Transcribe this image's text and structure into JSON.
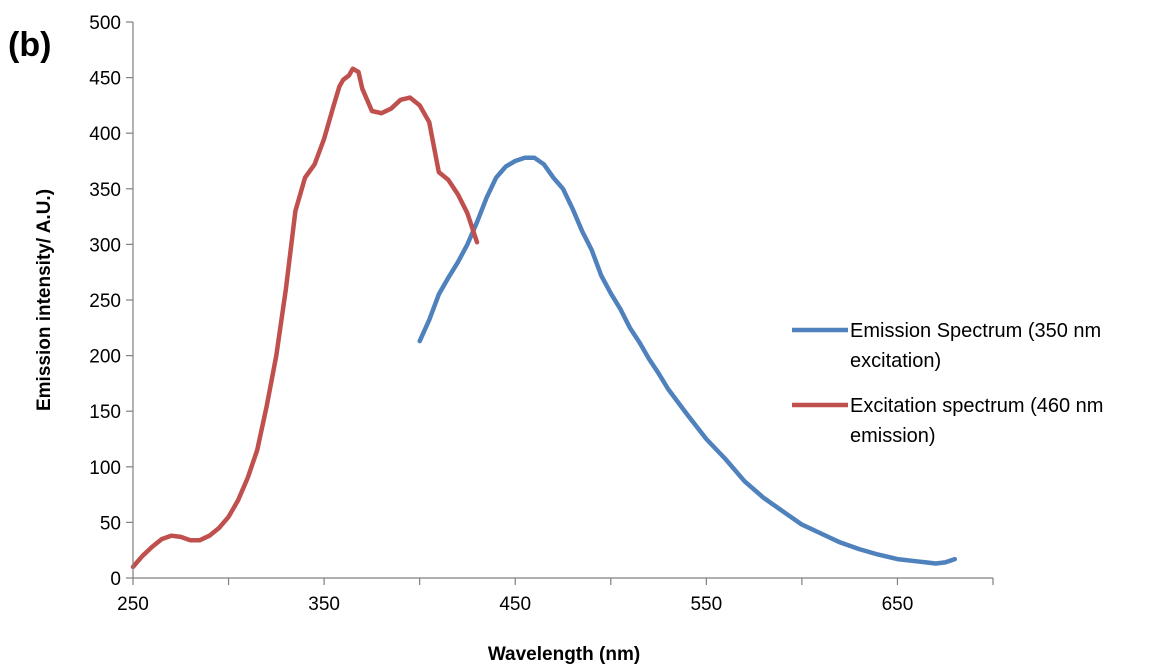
{
  "panel_label": "(b)",
  "chart_data": {
    "type": "line",
    "xlabel": "Wavelength (nm)",
    "ylabel": "Emission intensity/ A.U.)",
    "xlim": [
      250,
      700
    ],
    "ylim": [
      0,
      500
    ],
    "xticks": [
      250,
      350,
      450,
      550,
      650
    ],
    "yticks": [
      0,
      50,
      100,
      150,
      200,
      250,
      300,
      350,
      400,
      450,
      500
    ],
    "grid": false,
    "legend_position": "right",
    "series": [
      {
        "name": "Emission Spectrum (350 nm excitation)",
        "legend_lines": [
          "Emission Spectrum (350 nm",
          "excitation)"
        ],
        "color": "#4F81BD",
        "x": [
          400,
          405,
          410,
          415,
          420,
          425,
          430,
          435,
          440,
          445,
          450,
          455,
          460,
          465,
          470,
          475,
          480,
          485,
          490,
          495,
          500,
          505,
          510,
          515,
          520,
          525,
          530,
          540,
          550,
          560,
          570,
          580,
          590,
          600,
          610,
          620,
          630,
          640,
          650,
          660,
          665,
          670,
          675,
          680
        ],
        "y": [
          213,
          232,
          255,
          270,
          284,
          300,
          320,
          342,
          360,
          370,
          375,
          378,
          378,
          372,
          360,
          350,
          332,
          312,
          295,
          272,
          256,
          242,
          225,
          212,
          197,
          184,
          170,
          147,
          125,
          107,
          87,
          72,
          60,
          48,
          40,
          32,
          26,
          21,
          17,
          15,
          14,
          13,
          14,
          17
        ]
      },
      {
        "name": "Excitation spectrum (460 nm emission)",
        "legend_lines": [
          "Excitation spectrum (460 nm",
          "emission)"
        ],
        "color": "#C0504D",
        "x": [
          250,
          255,
          260,
          265,
          270,
          275,
          280,
          285,
          290,
          295,
          300,
          305,
          310,
          315,
          320,
          325,
          330,
          335,
          340,
          345,
          350,
          355,
          358,
          360,
          363,
          365,
          368,
          370,
          375,
          380,
          385,
          390,
          395,
          400,
          405,
          410,
          415,
          420,
          425,
          430
        ],
        "y": [
          10,
          20,
          28,
          35,
          38,
          37,
          34,
          34,
          38,
          45,
          55,
          70,
          90,
          115,
          155,
          200,
          260,
          330,
          360,
          372,
          395,
          425,
          442,
          448,
          452,
          458,
          455,
          440,
          420,
          418,
          422,
          430,
          432,
          425,
          410,
          365,
          358,
          345,
          328,
          302
        ]
      }
    ]
  }
}
